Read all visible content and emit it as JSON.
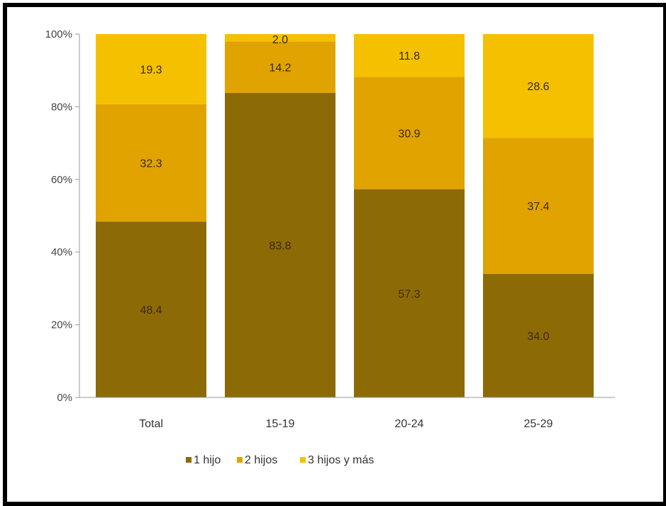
{
  "chart_data": {
    "type": "stacked-bar-100",
    "categories": [
      "Total",
      "15-19",
      "20-24",
      "25-29"
    ],
    "series": [
      {
        "name": "1 hijo",
        "color": "#8c6a05",
        "values": [
          48.4,
          83.8,
          57.3,
          34.0
        ],
        "labels": [
          "48.4",
          "83.8",
          "57.3",
          "34.0"
        ]
      },
      {
        "name": "2 hijos",
        "color": "#e0a300",
        "values": [
          32.3,
          14.2,
          30.9,
          37.4
        ],
        "labels": [
          "32.3",
          "14.2",
          "30.9",
          "37.4"
        ]
      },
      {
        "name": "3 hijos y más",
        "color": "#f5c000",
        "values": [
          19.3,
          2.0,
          11.8,
          28.6
        ],
        "labels": [
          "19.3",
          "2.0",
          "11.8",
          "28.6"
        ]
      }
    ],
    "yticks": [
      "0%",
      "20%",
      "40%",
      "60%",
      "80%",
      "100%"
    ],
    "ylim": [
      0,
      100
    ],
    "grid": false,
    "legend_position": "bottom"
  }
}
